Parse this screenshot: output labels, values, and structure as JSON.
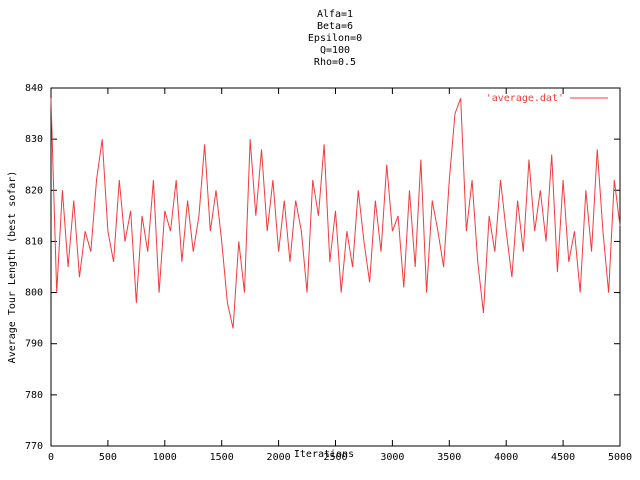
{
  "chart_data": {
    "type": "line",
    "title": [
      "Alfa=1",
      "Beta=6",
      "Epsilon=0",
      "Q=100",
      "Rho=0.5"
    ],
    "x_label": "Iterations",
    "y_label": "Average Tour Length (best sofar)",
    "legend": "top right",
    "grid": false,
    "xlim": [
      0,
      5000
    ],
    "xticks": [
      0,
      500,
      1000,
      1500,
      2000,
      2500,
      3000,
      3500,
      4000,
      4500,
      5000
    ],
    "ylim": [
      770,
      840
    ],
    "yticks": [
      770,
      780,
      790,
      800,
      810,
      820,
      830,
      840
    ],
    "x": [
      0,
      50,
      100,
      150,
      200,
      250,
      300,
      350,
      400,
      450,
      500,
      550,
      600,
      650,
      700,
      750,
      800,
      850,
      900,
      950,
      1000,
      1050,
      1100,
      1150,
      1200,
      1250,
      1300,
      1350,
      1400,
      1450,
      1500,
      1550,
      1600,
      1650,
      1700,
      1750,
      1800,
      1850,
      1900,
      1950,
      2000,
      2050,
      2100,
      2150,
      2200,
      2250,
      2300,
      2350,
      2400,
      2450,
      2500,
      2550,
      2600,
      2650,
      2700,
      2750,
      2800,
      2850,
      2900,
      2950,
      3000,
      3050,
      3100,
      3150,
      3200,
      3250,
      3300,
      3350,
      3400,
      3450,
      3500,
      3550,
      3600,
      3650,
      3700,
      3750,
      3800,
      3850,
      3900,
      3950,
      4000,
      4050,
      4100,
      4150,
      4200,
      4250,
      4300,
      4350,
      4400,
      4450,
      4500,
      4550,
      4600,
      4650,
      4700,
      4750,
      4800,
      4850,
      4900,
      4950,
      5000
    ],
    "series": [
      {
        "name": "'average.dat'",
        "color": "#f03c3c",
        "values": [
          838,
          800,
          820,
          805,
          818,
          803,
          812,
          808,
          822,
          830,
          812,
          806,
          822,
          810,
          816,
          798,
          815,
          808,
          822,
          800,
          816,
          812,
          822,
          806,
          818,
          808,
          815,
          829,
          812,
          820,
          810,
          798,
          793,
          810,
          800,
          830,
          815,
          828,
          812,
          822,
          808,
          818,
          806,
          818,
          812,
          800,
          822,
          815,
          829,
          806,
          816,
          800,
          812,
          805,
          820,
          810,
          802,
          818,
          808,
          825,
          812,
          815,
          801,
          820,
          805,
          826,
          800,
          818,
          812,
          805,
          822,
          835,
          838,
          812,
          822,
          806,
          796,
          815,
          808,
          822,
          812,
          803,
          818,
          808,
          826,
          812,
          820,
          810,
          827,
          804,
          822,
          806,
          812,
          800,
          820,
          808,
          828,
          812,
          800,
          822,
          813
        ]
      }
    ]
  }
}
